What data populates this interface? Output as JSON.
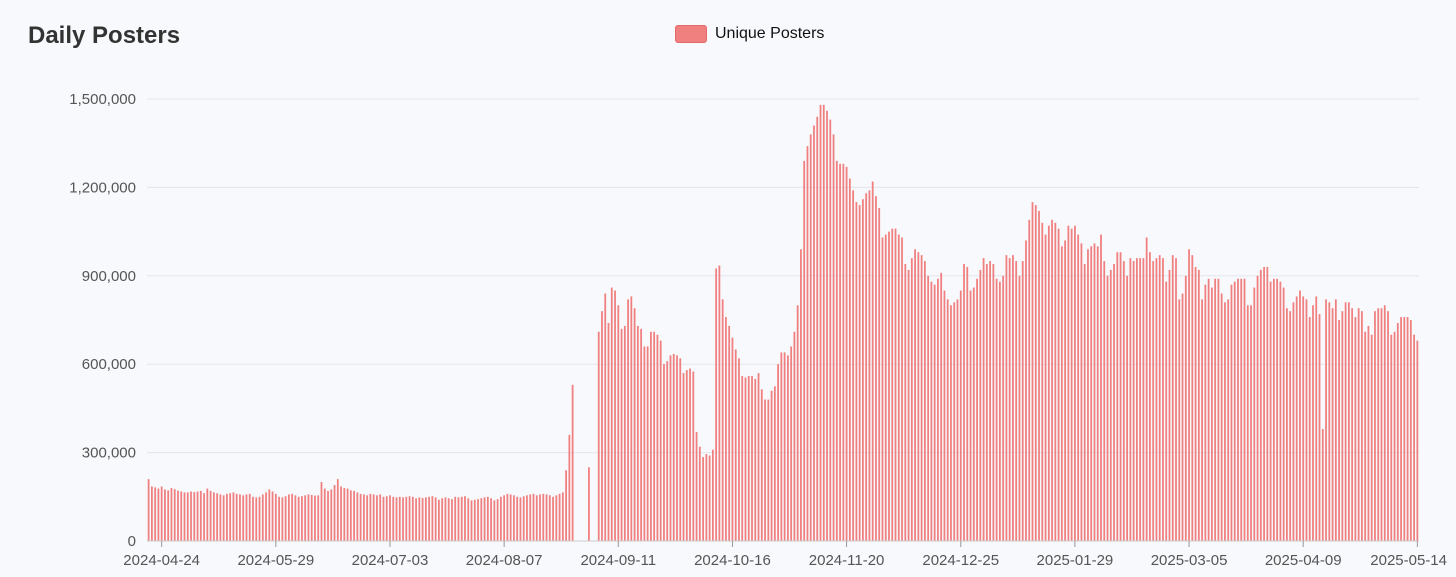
{
  "chart_data": {
    "type": "bar",
    "title": "Daily Posters",
    "legend": {
      "position": "top-center",
      "label": "Unique Posters"
    },
    "colors": {
      "bar_fill": "#f08080",
      "bar_stroke": "#e36a6a",
      "grid": "#e4e6ee",
      "background": "#f8f9fc"
    },
    "grid": true,
    "ylim": [
      0,
      1500000
    ],
    "y_ticks": [
      {
        "value": 0,
        "label": "0"
      },
      {
        "value": 300000,
        "label": "300,000"
      },
      {
        "value": 600000,
        "label": "600,000"
      },
      {
        "value": 900000,
        "label": "900,000"
      },
      {
        "value": 1200000,
        "label": "1,200,000"
      },
      {
        "value": 1500000,
        "label": "1,500,000"
      }
    ],
    "x_ticks": [
      "2024-04-24",
      "2024-05-29",
      "2024-07-03",
      "2024-08-07",
      "2024-09-11",
      "2024-10-16",
      "2024-11-20",
      "2024-12-25",
      "2025-01-29",
      "2025-03-05",
      "2025-04-09",
      "2025-05-14"
    ],
    "x_start": "2024-04-20",
    "x_end": "2025-05-14",
    "series": [
      {
        "name": "Unique Posters",
        "values": [
          210000,
          185000,
          182000,
          178000,
          185000,
          175000,
          172000,
          180000,
          176000,
          171000,
          168000,
          165000,
          165000,
          168000,
          166000,
          168000,
          170000,
          162000,
          178000,
          170000,
          165000,
          162000,
          158000,
          155000,
          160000,
          162000,
          165000,
          160000,
          158000,
          155000,
          158000,
          160000,
          150000,
          148000,
          150000,
          158000,
          165000,
          175000,
          168000,
          160000,
          150000,
          148000,
          152000,
          158000,
          160000,
          155000,
          150000,
          152000,
          155000,
          158000,
          156000,
          154000,
          155000,
          200000,
          178000,
          170000,
          175000,
          190000,
          210000,
          185000,
          180000,
          178000,
          172000,
          170000,
          165000,
          160000,
          158000,
          155000,
          160000,
          158000,
          155000,
          158000,
          150000,
          152000,
          155000,
          150000,
          148000,
          150000,
          148000,
          150000,
          152000,
          150000,
          145000,
          148000,
          146000,
          148000,
          150000,
          152000,
          148000,
          140000,
          145000,
          148000,
          145000,
          142000,
          150000,
          148000,
          150000,
          152000,
          145000,
          138000,
          140000,
          142000,
          145000,
          148000,
          150000,
          145000,
          138000,
          142000,
          150000,
          155000,
          160000,
          158000,
          155000,
          150000,
          148000,
          152000,
          155000,
          158000,
          160000,
          155000,
          158000,
          160000,
          158000,
          155000,
          150000,
          155000,
          160000,
          165000,
          240000,
          360000,
          530000,
          0,
          0,
          0,
          0,
          250000,
          0,
          0,
          710000,
          780000,
          840000,
          740000,
          860000,
          850000,
          800000,
          720000,
          730000,
          820000,
          830000,
          790000,
          730000,
          720000,
          660000,
          660000,
          710000,
          710000,
          700000,
          680000,
          600000,
          610000,
          630000,
          635000,
          630000,
          620000,
          570000,
          580000,
          585000,
          575000,
          370000,
          320000,
          285000,
          295000,
          290000,
          310000,
          925000,
          935000,
          820000,
          760000,
          730000,
          690000,
          650000,
          620000,
          560000,
          555000,
          560000,
          560000,
          550000,
          570000,
          515000,
          480000,
          480000,
          510000,
          525000,
          600000,
          640000,
          640000,
          630000,
          660000,
          710000,
          800000,
          990000,
          1290000,
          1340000,
          1380000,
          1410000,
          1440000,
          1480000,
          1480000,
          1460000,
          1430000,
          1380000,
          1290000,
          1280000,
          1280000,
          1270000,
          1230000,
          1190000,
          1150000,
          1140000,
          1160000,
          1180000,
          1190000,
          1220000,
          1170000,
          1130000,
          1030000,
          1040000,
          1050000,
          1060000,
          1060000,
          1040000,
          1030000,
          940000,
          920000,
          960000,
          990000,
          980000,
          970000,
          950000,
          900000,
          880000,
          870000,
          890000,
          910000,
          850000,
          820000,
          800000,
          810000,
          820000,
          850000,
          940000,
          930000,
          850000,
          860000,
          890000,
          920000,
          960000,
          940000,
          950000,
          940000,
          890000,
          880000,
          900000,
          970000,
          960000,
          970000,
          950000,
          900000,
          950000,
          1020000,
          1090000,
          1150000,
          1140000,
          1120000,
          1080000,
          1040000,
          1070000,
          1090000,
          1080000,
          1060000,
          1000000,
          1020000,
          1070000,
          1060000,
          1070000,
          1040000,
          1010000,
          940000,
          990000,
          1000000,
          1010000,
          1000000,
          1040000,
          950000,
          900000,
          920000,
          940000,
          980000,
          980000,
          950000,
          900000,
          960000,
          950000,
          960000,
          960000,
          960000,
          1030000,
          980000,
          950000,
          960000,
          970000,
          960000,
          880000,
          920000,
          970000,
          960000,
          820000,
          840000,
          900000,
          990000,
          970000,
          930000,
          920000,
          820000,
          870000,
          890000,
          860000,
          890000,
          890000,
          840000,
          810000,
          820000,
          870000,
          880000,
          890000,
          890000,
          890000,
          800000,
          800000,
          860000,
          900000,
          920000,
          930000,
          930000,
          880000,
          890000,
          890000,
          880000,
          860000,
          790000,
          780000,
          810000,
          830000,
          850000,
          830000,
          820000,
          760000,
          800000,
          830000,
          770000,
          380000,
          820000,
          810000,
          790000,
          820000,
          750000,
          780000,
          810000,
          810000,
          790000,
          760000,
          790000,
          780000,
          710000,
          730000,
          700000,
          780000,
          790000,
          790000,
          800000,
          780000,
          700000,
          710000,
          740000,
          760000,
          760000,
          760000,
          750000,
          700000,
          680000
        ]
      }
    ]
  }
}
